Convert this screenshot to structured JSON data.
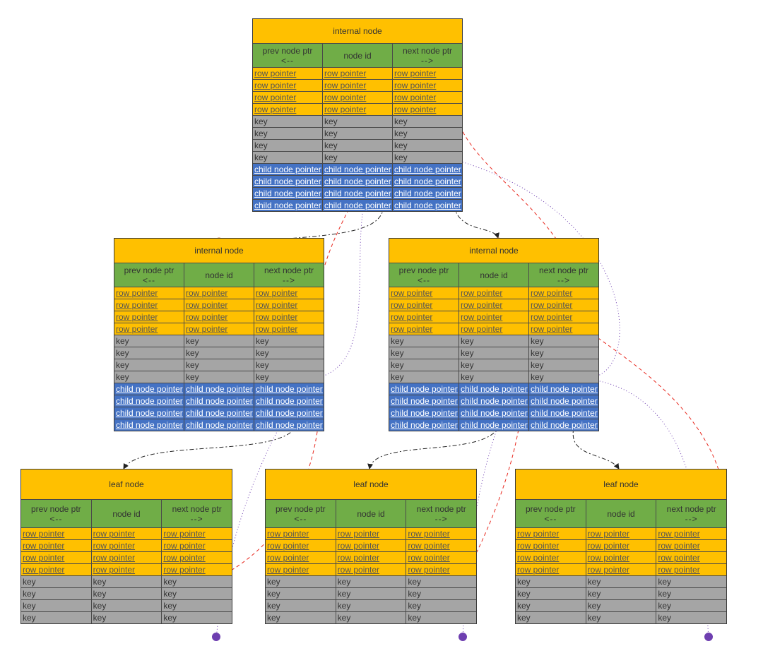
{
  "labels": {
    "internal_title": "internal node",
    "leaf_title": "leaf node",
    "prev_ptr": "prev node ptr",
    "prev_arrow": "<--",
    "node_id": "node id",
    "next_ptr": "next node ptr",
    "next_arrow": "-->",
    "row_pointer": "row pointer",
    "key": "key",
    "child_node_pointer": "child node pointer"
  },
  "nodes": [
    {
      "id": "root",
      "kind": "internal",
      "title": "internal node"
    },
    {
      "id": "mid-left",
      "kind": "internal",
      "title": "internal node"
    },
    {
      "id": "mid-right",
      "kind": "internal",
      "title": "internal node"
    },
    {
      "id": "leaf-left",
      "kind": "leaf",
      "title": "leaf node"
    },
    {
      "id": "leaf-center",
      "kind": "leaf",
      "title": "leaf node"
    },
    {
      "id": "leaf-right",
      "kind": "leaf",
      "title": "leaf node"
    }
  ],
  "colors": {
    "title": "#ffc000",
    "header": "#70ad47",
    "row_pointer": "#ffc000",
    "key": "#a5a5a5",
    "child_pointer": "#4472c4",
    "red_link": "#e8281e",
    "purple_link": "#6e3fb0",
    "black_link": "#222222",
    "peach_marker": "#f4b183"
  },
  "edges": [
    {
      "from": "root",
      "to": "mid-left",
      "style": "black-dashdot"
    },
    {
      "from": "root",
      "to": "mid-right",
      "style": "black-dashdot"
    },
    {
      "from": "mid-left",
      "to": "leaf-left",
      "style": "black-dashdot"
    },
    {
      "from": "mid-right",
      "to": "leaf-center",
      "style": "black-dashdot"
    },
    {
      "from": "mid-right",
      "to": "leaf-right",
      "style": "black-dashdot"
    },
    {
      "from": "root",
      "to": "mid-left",
      "style": "red-dashed"
    },
    {
      "from": "root",
      "to": "mid-right",
      "style": "red-dashed"
    },
    {
      "from": "mid-left",
      "to": "leaf-left",
      "style": "red-dashed"
    },
    {
      "from": "mid-right",
      "to": "leaf-center",
      "style": "red-dashed"
    },
    {
      "from": "mid-right",
      "to": "leaf-right",
      "style": "red-dashed"
    },
    {
      "from": "root",
      "to": "mid-left",
      "style": "purple-dotted"
    },
    {
      "from": "root",
      "to": "mid-right",
      "style": "purple-dotted"
    },
    {
      "from": "mid-left",
      "to": "leaf-left",
      "style": "purple-dotted"
    },
    {
      "from": "mid-right",
      "to": "leaf-center",
      "style": "purple-dotted"
    },
    {
      "from": "mid-right",
      "to": "leaf-right",
      "style": "purple-dotted"
    }
  ]
}
